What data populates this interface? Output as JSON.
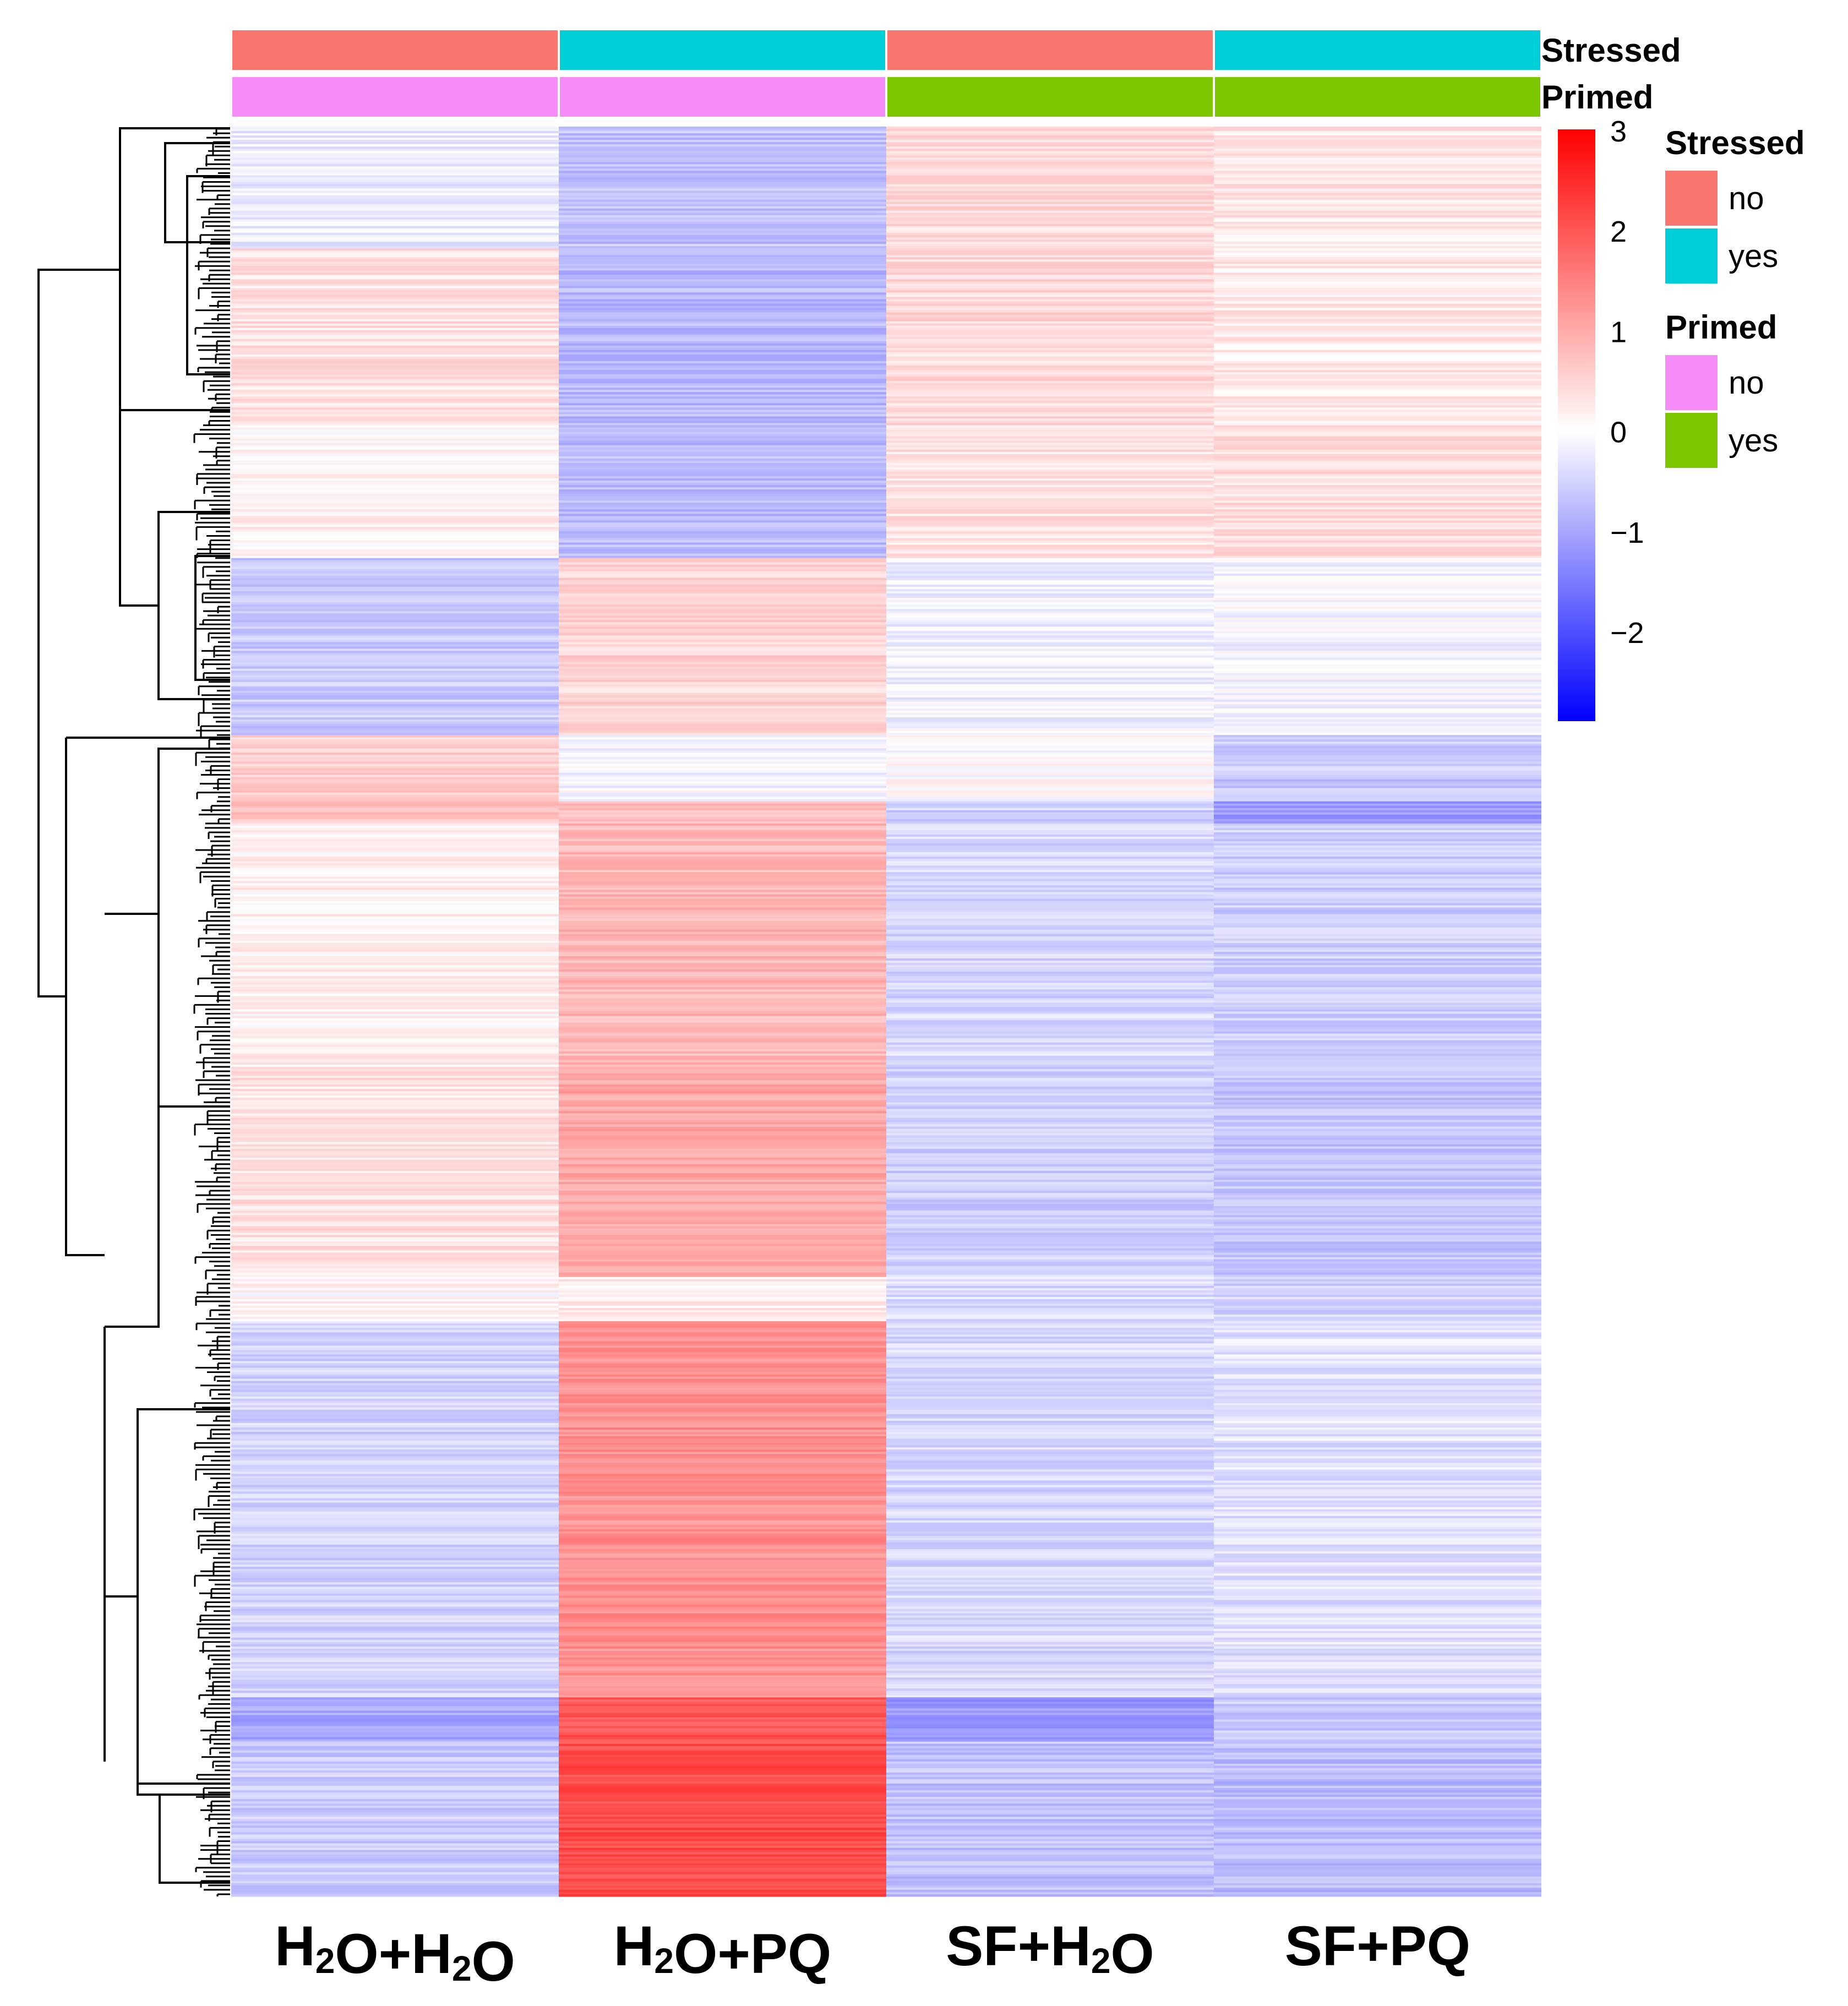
{
  "chart_data": {
    "type": "heatmap",
    "columns": [
      "H2O+H2O",
      "H2O+PQ",
      "SF+H2O",
      "SF+PQ"
    ],
    "column_labels": [
      {
        "main": "H",
        "sub": "2",
        "rest": "O+H",
        "sub2": "2",
        "rest2": "O"
      },
      {
        "main": "H",
        "sub": "2",
        "rest": "O+PQ",
        "sub2": "",
        "rest2": ""
      },
      {
        "main": "SF+H",
        "sub": "2",
        "rest": "O",
        "sub2": "",
        "rest2": ""
      },
      {
        "main": "SF+PQ",
        "sub": "",
        "rest": "",
        "sub2": "",
        "rest2": ""
      }
    ],
    "annotations": {
      "Stressed": [
        "no",
        "yes",
        "no",
        "yes"
      ],
      "Primed": [
        "no",
        "no",
        "yes",
        "yes"
      ]
    },
    "annotation_colors": {
      "Stressed": {
        "no": "#F8766D",
        "yes": "#00CED8"
      },
      "Primed": {
        "no": "#F68CF8",
        "yes": "#7CC700"
      }
    },
    "legend": [
      {
        "title": "Stressed",
        "items": [
          {
            "label": "no",
            "color": "#F8766D"
          },
          {
            "label": "yes",
            "color": "#00CED8"
          }
        ]
      },
      {
        "title": "Primed",
        "items": [
          {
            "label": "no",
            "color": "#F68CF8"
          },
          {
            "label": "yes",
            "color": "#7CC700"
          }
        ]
      }
    ],
    "colorscale": {
      "min": -2.9,
      "max": 3,
      "ticks": [
        {
          "value": 3,
          "label": "3"
        },
        {
          "value": 2,
          "label": "2"
        },
        {
          "value": 1,
          "label": "1"
        },
        {
          "value": 0,
          "label": "0"
        },
        {
          "value": -1,
          "label": "−1"
        },
        {
          "value": -2,
          "label": "−2"
        }
      ],
      "low_color": "#0000FF",
      "mid_color": "#FFFFFF",
      "high_color": "#FF0000"
    },
    "row_blocks": [
      {
        "rows": 55,
        "values": [
          -0.2,
          -0.7,
          0.45,
          0.3
        ]
      },
      {
        "rows": 80,
        "values": [
          0.35,
          -0.8,
          0.45,
          0.25
        ]
      },
      {
        "rows": 60,
        "values": [
          0.15,
          -0.75,
          0.35,
          0.4
        ]
      },
      {
        "rows": 80,
        "values": [
          -0.6,
          0.5,
          -0.15,
          -0.1
        ]
      },
      {
        "rows": 30,
        "values": [
          0.6,
          -0.1,
          0.05,
          -0.6
        ]
      },
      {
        "rows": 10,
        "values": [
          0.7,
          0.7,
          -0.5,
          -1.2
        ]
      },
      {
        "rows": 110,
        "values": [
          0.15,
          0.85,
          -0.45,
          -0.55
        ]
      },
      {
        "rows": 95,
        "values": [
          0.35,
          1.05,
          -0.55,
          -0.65
        ]
      },
      {
        "rows": 20,
        "values": [
          0.1,
          0.2,
          -0.4,
          -0.5
        ]
      },
      {
        "rows": 170,
        "values": [
          -0.5,
          1.3,
          -0.45,
          -0.35
        ]
      },
      {
        "rows": 20,
        "values": [
          -1.0,
          2.0,
          -1.2,
          -0.6
        ]
      },
      {
        "rows": 70,
        "values": [
          -0.6,
          2.1,
          -0.7,
          -0.75
        ]
      }
    ]
  }
}
